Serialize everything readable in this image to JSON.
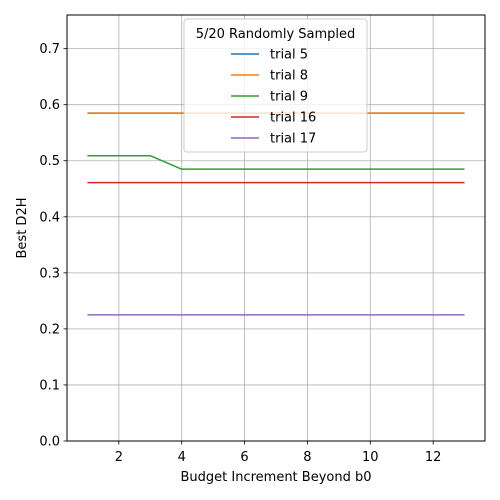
{
  "chart_data": {
    "type": "line",
    "title": "",
    "xlabel": "Budget Increment Beyond b0",
    "ylabel": "Best D2H",
    "xlim": [
      0.35,
      13.65
    ],
    "ylim": [
      0.0,
      0.76
    ],
    "xticks": [
      2,
      4,
      6,
      8,
      10,
      12
    ],
    "yticks": [
      0.0,
      0.1,
      0.2,
      0.3,
      0.4,
      0.5,
      0.6,
      0.7
    ],
    "grid": true,
    "legend": {
      "title": "5/20 Randomly Sampled",
      "placement": "top-center"
    },
    "x": [
      1,
      2,
      3,
      4,
      5,
      6,
      7,
      8,
      9,
      10,
      11,
      12,
      13
    ],
    "series": [
      {
        "name": "trial 5",
        "color": "#1f77b4",
        "values": [
          0.585,
          0.585,
          0.585,
          0.585,
          0.585,
          0.585,
          0.585,
          0.585,
          0.585,
          0.585,
          0.585,
          0.585,
          0.585
        ]
      },
      {
        "name": "trial 8",
        "color": "#ff7f0e",
        "values": [
          0.585,
          0.585,
          0.585,
          0.585,
          0.585,
          0.585,
          0.585,
          0.585,
          0.585,
          0.585,
          0.585,
          0.585,
          0.585
        ]
      },
      {
        "name": "trial 9",
        "color": "#2ca02c",
        "values": [
          0.509,
          0.509,
          0.509,
          0.485,
          0.485,
          0.485,
          0.485,
          0.485,
          0.485,
          0.485,
          0.485,
          0.485,
          0.485
        ]
      },
      {
        "name": "trial 16",
        "color": "#d62728",
        "values": [
          0.461,
          0.461,
          0.461,
          0.461,
          0.461,
          0.461,
          0.461,
          0.461,
          0.461,
          0.461,
          0.461,
          0.461,
          0.461
        ]
      },
      {
        "name": "trial 17",
        "color": "#9467bd",
        "values": [
          0.225,
          0.225,
          0.225,
          0.225,
          0.225,
          0.225,
          0.225,
          0.225,
          0.225,
          0.225,
          0.225,
          0.225,
          0.225
        ]
      }
    ]
  }
}
